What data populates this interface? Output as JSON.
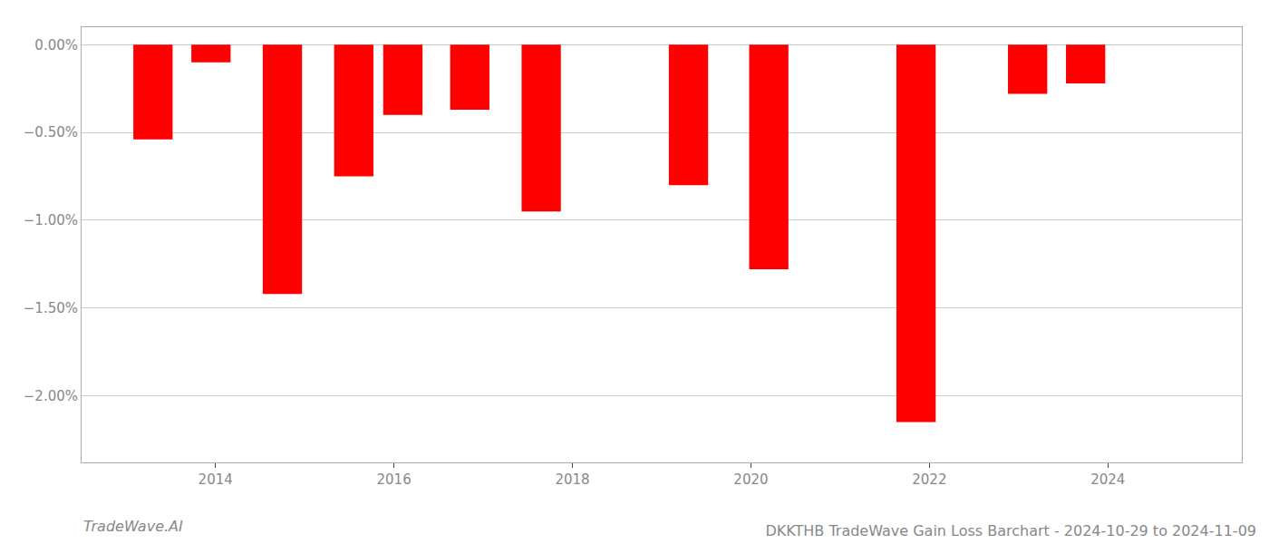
{
  "chart_data": {
    "type": "bar",
    "title": "DKKTHB TradeWave Gain Loss Barchart - 2024-10-29 to 2024-11-09",
    "annotations": [
      {
        "text": "TradeWave.AI"
      }
    ],
    "x": [
      2013.3,
      2013.95,
      2014.75,
      2015.55,
      2016.1,
      2016.85,
      2017.65,
      2019.3,
      2020.2,
      2021.85,
      2023.1,
      2023.75
    ],
    "values": [
      -0.54,
      -0.1,
      -1.42,
      -0.75,
      -0.4,
      -0.37,
      -0.95,
      -0.8,
      -1.28,
      -2.15,
      -0.28,
      -0.22
    ],
    "color": "#ff0000",
    "xlim": [
      2012.5,
      2025.5
    ],
    "xticks": [
      2014,
      2016,
      2018,
      2020,
      2022,
      2024
    ],
    "ylim": [
      -2.38,
      0.1
    ],
    "yticks": [
      {
        "value": 0.0,
        "label": "0.00%"
      },
      {
        "value": -0.5,
        "label": "−0.50%"
      },
      {
        "value": -1.0,
        "label": "−1.00%"
      },
      {
        "value": -1.5,
        "label": "−1.50%"
      },
      {
        "value": -2.0,
        "label": "−2.00%"
      }
    ],
    "grid": true
  }
}
